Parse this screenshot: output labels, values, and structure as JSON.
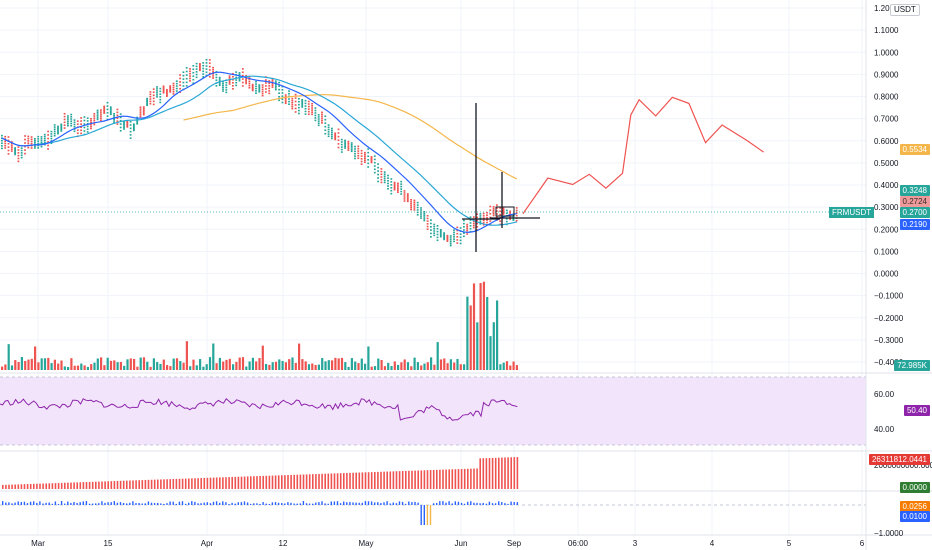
{
  "symbol": "FRMUSDT",
  "currency": "USDT",
  "colors": {
    "up": "#26a69a",
    "down": "#ef5350",
    "ma_fast": "#2962ff",
    "ma_mid": "#2aa7d6",
    "ma_slow": "#f4b64a",
    "forecast": "#ef5350",
    "rsi": "#8e24aa",
    "rsi_band": "#f2e5fb",
    "grid": "#f0f3fa",
    "axis_text": "#131722"
  },
  "price_axis_ticks": [
    "1.2000",
    "1.1000",
    "1.0000",
    "0.9000",
    "0.8000",
    "0.7000",
    "0.6000",
    "0.5000",
    "0.4000",
    "0.3000",
    "0.2000",
    "0.1000",
    "0.0000",
    "−0.1000",
    "−0.2000",
    "−0.3000",
    "−0.4000"
  ],
  "price_labels": {
    "ma_slow_last": "0.5534",
    "ma_mid_last": "0.3248",
    "ask": "0.2724",
    "last": "0.2700",
    "ma_fast_last": "0.2190",
    "volume_last": "72.985K"
  },
  "rsi": {
    "ticks": [
      "60.00",
      "40.00"
    ],
    "upper": 70,
    "lower": 30,
    "last_label": "50.40"
  },
  "obv": {
    "ticks": [
      "2000000000.0000"
    ],
    "last_label": "26311812.0441",
    "zero_label": "0.0000"
  },
  "osc": {
    "label_a": "0.0256",
    "label_b": "0.0100",
    "tick": "−1.0000"
  },
  "time_axis": [
    "Mar",
    "15",
    "Apr",
    "12",
    "May",
    "Jun",
    "Sep",
    "06:00",
    "3",
    "4",
    "5",
    "6"
  ],
  "chart_data": {
    "type": "line",
    "series": [
      {
        "price_path": [
          [
            0,
            0.62
          ],
          [
            0.02,
            0.55
          ],
          [
            0.04,
            0.6
          ],
          [
            0.06,
            0.62
          ],
          [
            0.08,
            0.7
          ],
          [
            0.1,
            0.66
          ],
          [
            0.13,
            0.74
          ],
          [
            0.16,
            0.66
          ],
          [
            0.18,
            0.8
          ],
          [
            0.21,
            0.84
          ],
          [
            0.23,
            0.9
          ],
          [
            0.25,
            0.94
          ],
          [
            0.27,
            0.86
          ],
          [
            0.29,
            0.9
          ],
          [
            0.31,
            0.84
          ],
          [
            0.33,
            0.86
          ],
          [
            0.35,
            0.78
          ],
          [
            0.37,
            0.76
          ],
          [
            0.39,
            0.69
          ],
          [
            0.41,
            0.6
          ],
          [
            0.43,
            0.56
          ],
          [
            0.45,
            0.5
          ],
          [
            0.47,
            0.42
          ],
          [
            0.49,
            0.36
          ],
          [
            0.5,
            0.3
          ],
          [
            0.52,
            0.22
          ],
          [
            0.54,
            0.16
          ],
          [
            0.56,
            0.2
          ],
          [
            0.58,
            0.25
          ],
          [
            0.6,
            0.28
          ],
          [
            0.62,
            0.27
          ]
        ],
        "forecast_path": [
          [
            0.63,
            0.27
          ],
          [
            0.66,
            0.44
          ],
          [
            0.69,
            0.4
          ],
          [
            0.71,
            0.44
          ],
          [
            0.73,
            0.39
          ],
          [
            0.75,
            0.46
          ],
          [
            0.76,
            0.71
          ],
          [
            0.77,
            0.78
          ],
          [
            0.79,
            0.72
          ],
          [
            0.81,
            0.8
          ],
          [
            0.83,
            0.76
          ],
          [
            0.85,
            0.59
          ],
          [
            0.87,
            0.68
          ],
          [
            0.9,
            0.6
          ],
          [
            0.92,
            0.54
          ]
        ]
      }
    ],
    "ylim": [
      -0.4,
      1.2
    ]
  }
}
